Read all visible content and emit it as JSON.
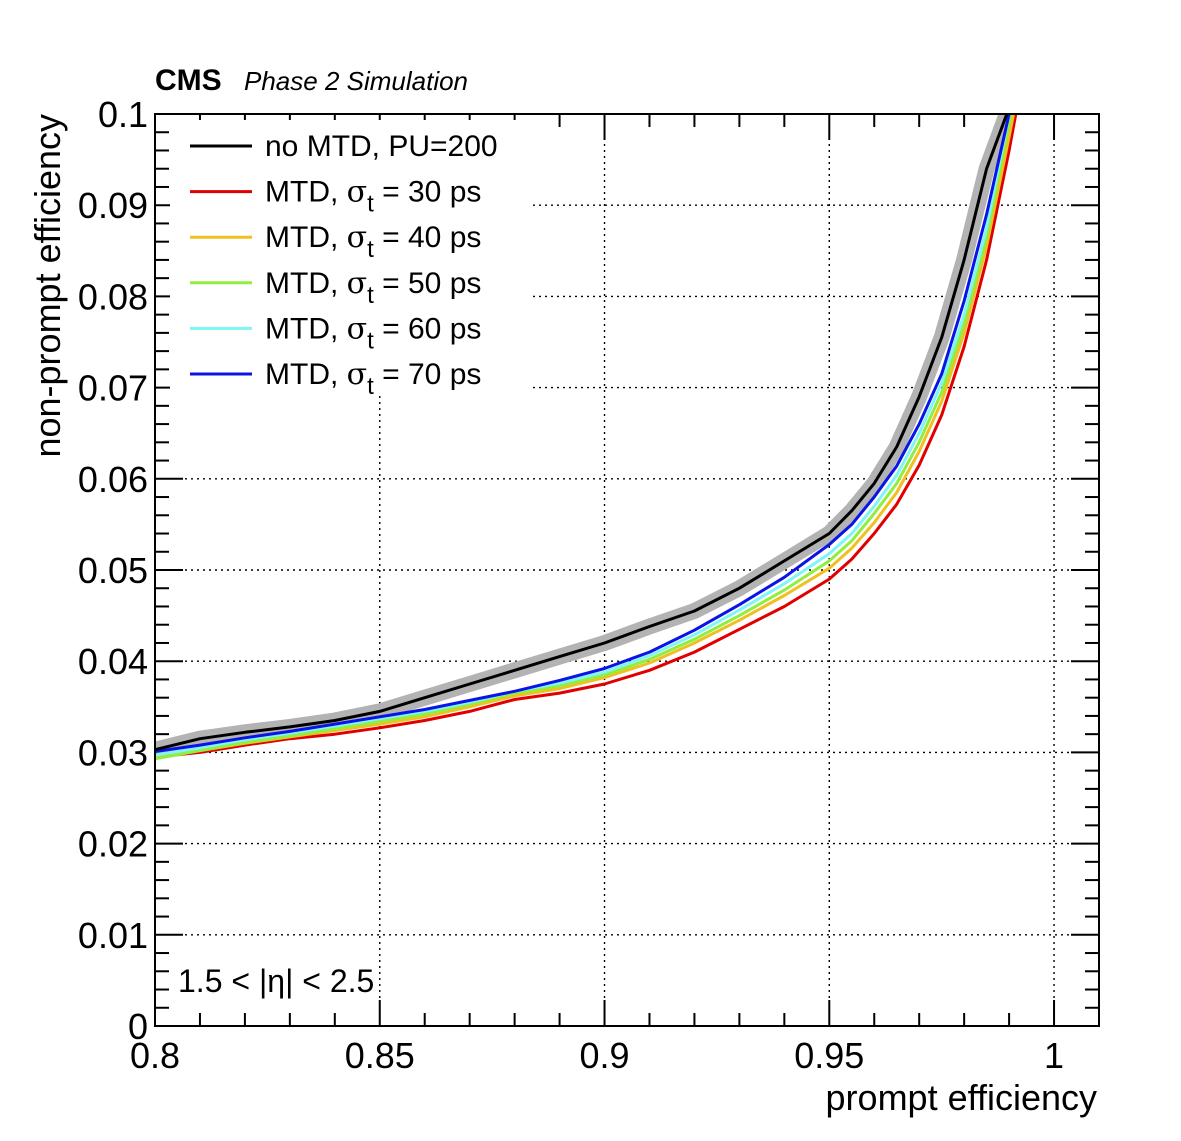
{
  "header": {
    "experiment": "CMS",
    "status": "Phase 2 Simulation"
  },
  "region_label": "1.5 < |η| < 2.5",
  "chart_data": {
    "type": "line",
    "title": "",
    "xlabel": "prompt efficiency",
    "ylabel": "non-prompt efficiency",
    "xlim": [
      0.8,
      1.01
    ],
    "ylim": [
      0,
      0.1
    ],
    "x_ticks": [
      "0.8",
      "0.85",
      "0.9",
      "0.95",
      "1"
    ],
    "y_ticks": [
      "0",
      "0.01",
      "0.02",
      "0.03",
      "0.04",
      "0.05",
      "0.06",
      "0.07",
      "0.08",
      "0.09",
      "0.1"
    ],
    "grid": true,
    "legend_position": "top-left",
    "series": [
      {
        "name": "no MTD, PU=200",
        "legend_prefix": "no MTD, PU=200",
        "legend_suffix": "",
        "color": "#000000",
        "band_color": "#b3b3b3",
        "x": [
          0.8,
          0.81,
          0.82,
          0.83,
          0.84,
          0.85,
          0.86,
          0.87,
          0.88,
          0.89,
          0.9,
          0.91,
          0.92,
          0.93,
          0.94,
          0.95,
          0.955,
          0.96,
          0.965,
          0.97,
          0.975,
          0.98,
          0.985,
          0.9895
        ],
        "y": [
          0.0303,
          0.0315,
          0.0322,
          0.0328,
          0.0335,
          0.0345,
          0.036,
          0.0375,
          0.039,
          0.0405,
          0.042,
          0.0438,
          0.0455,
          0.048,
          0.051,
          0.054,
          0.0565,
          0.0595,
          0.0635,
          0.069,
          0.0755,
          0.084,
          0.094,
          0.1
        ]
      },
      {
        "name": "MTD, σt = 30 ps",
        "legend_prefix": "MTD, ",
        "legend_suffix": " = 30 ps",
        "color": "#e00000",
        "x": [
          0.8,
          0.81,
          0.82,
          0.83,
          0.84,
          0.85,
          0.86,
          0.87,
          0.88,
          0.89,
          0.9,
          0.91,
          0.92,
          0.93,
          0.94,
          0.95,
          0.955,
          0.96,
          0.965,
          0.97,
          0.975,
          0.98,
          0.985,
          0.99,
          0.9915
        ],
        "y": [
          0.0295,
          0.03,
          0.0308,
          0.0315,
          0.032,
          0.0327,
          0.0335,
          0.0345,
          0.0358,
          0.0365,
          0.0375,
          0.039,
          0.041,
          0.0435,
          0.046,
          0.049,
          0.0512,
          0.054,
          0.0572,
          0.0615,
          0.067,
          0.0745,
          0.084,
          0.096,
          0.1
        ]
      },
      {
        "name": "MTD, σt = 40 ps",
        "legend_prefix": "MTD, ",
        "legend_suffix": " = 40 ps",
        "color": "#f0c020",
        "x": [
          0.8,
          0.81,
          0.82,
          0.83,
          0.84,
          0.85,
          0.86,
          0.87,
          0.88,
          0.89,
          0.9,
          0.91,
          0.92,
          0.93,
          0.94,
          0.95,
          0.955,
          0.96,
          0.965,
          0.97,
          0.975,
          0.98,
          0.985,
          0.99,
          0.991
        ],
        "y": [
          0.0295,
          0.0302,
          0.031,
          0.0317,
          0.0324,
          0.0331,
          0.0339,
          0.035,
          0.0362,
          0.037,
          0.0382,
          0.0398,
          0.042,
          0.0445,
          0.0472,
          0.0502,
          0.0524,
          0.0552,
          0.0585,
          0.063,
          0.0685,
          0.076,
          0.0855,
          0.0975,
          0.1
        ]
      },
      {
        "name": "MTD, σt = 50 ps",
        "legend_prefix": "MTD, ",
        "legend_suffix": " = 50 ps",
        "color": "#90ee40",
        "x": [
          0.8,
          0.81,
          0.82,
          0.83,
          0.84,
          0.85,
          0.86,
          0.87,
          0.88,
          0.89,
          0.9,
          0.91,
          0.92,
          0.93,
          0.94,
          0.95,
          0.955,
          0.96,
          0.965,
          0.97,
          0.975,
          0.98,
          0.985,
          0.99,
          0.9905
        ],
        "y": [
          0.0293,
          0.0302,
          0.0311,
          0.0318,
          0.0326,
          0.0334,
          0.0342,
          0.0353,
          0.0365,
          0.0373,
          0.0385,
          0.0402,
          0.0424,
          0.045,
          0.0478,
          0.051,
          0.0532,
          0.0562,
          0.0595,
          0.064,
          0.0695,
          0.077,
          0.0865,
          0.099,
          0.1
        ]
      },
      {
        "name": "MTD, σt = 60 ps",
        "legend_prefix": "MTD, ",
        "legend_suffix": " = 60 ps",
        "color": "#7ff5f5",
        "x": [
          0.8,
          0.81,
          0.82,
          0.83,
          0.84,
          0.85,
          0.86,
          0.87,
          0.88,
          0.89,
          0.9,
          0.91,
          0.92,
          0.93,
          0.94,
          0.95,
          0.955,
          0.96,
          0.965,
          0.97,
          0.975,
          0.98,
          0.985,
          0.99
        ],
        "y": [
          0.0297,
          0.0305,
          0.0314,
          0.0321,
          0.0329,
          0.0337,
          0.0345,
          0.0355,
          0.0367,
          0.0376,
          0.0388,
          0.0406,
          0.0429,
          0.0456,
          0.0485,
          0.0518,
          0.054,
          0.057,
          0.0604,
          0.065,
          0.0705,
          0.078,
          0.0875,
          0.1
        ]
      },
      {
        "name": "MTD, σt = 70 ps",
        "legend_prefix": "MTD, ",
        "legend_suffix": " = 70 ps",
        "color": "#0a14e6",
        "x": [
          0.8,
          0.81,
          0.82,
          0.83,
          0.84,
          0.85,
          0.86,
          0.87,
          0.88,
          0.89,
          0.9,
          0.91,
          0.92,
          0.93,
          0.94,
          0.95,
          0.955,
          0.96,
          0.965,
          0.97,
          0.975,
          0.98,
          0.985,
          0.99
        ],
        "y": [
          0.0301,
          0.0308,
          0.0316,
          0.0323,
          0.0331,
          0.0339,
          0.0347,
          0.0357,
          0.0367,
          0.0379,
          0.0392,
          0.041,
          0.0434,
          0.0462,
          0.0492,
          0.0528,
          0.055,
          0.058,
          0.0614,
          0.066,
          0.0715,
          0.0795,
          0.089,
          0.1
        ]
      }
    ]
  }
}
